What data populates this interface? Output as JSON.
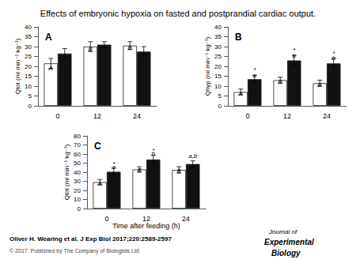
{
  "title": "Effects of embryonic hypoxia on fasted and postprandial cardiac output.",
  "annotations": [
    {
      "text": "Oliver H. Wearing et al. J Exp Biol 2017;220:2589-2597"
    },
    {
      "text": "© 2017. Published by The Company of Biologists Ltd"
    },
    {
      "text": "Journal of"
    },
    {
      "text": "Experimental"
    },
    {
      "text": "Biology"
    }
  ],
  "chart_data": [
    {
      "type": "bar",
      "title": "A",
      "ylabel": "Q̇tot (ml min⁻¹ kg⁻¹)",
      "categories": [
        "0",
        "12",
        "24"
      ],
      "series": [
        {
          "color": "#ffffff",
          "values": [
            21.5,
            30.0,
            30.5
          ],
          "errors": [
            2.5,
            2.5,
            2.0
          ]
        },
        {
          "color": "#111111",
          "values": [
            26.5,
            31.0,
            27.5
          ],
          "errors": [
            2.5,
            1.5,
            2.5
          ]
        }
      ],
      "ylim": [
        0,
        40
      ],
      "yticks": [
        0,
        5,
        10,
        15,
        20,
        25,
        30,
        35,
        40
      ],
      "grid": false,
      "annotations": [
        {
          "text": "A",
          "category": "0",
          "series": 0,
          "y": 17.5
        },
        {
          "text": "B",
          "category": "12",
          "series": 0,
          "y": 27.0
        },
        {
          "text": "B",
          "category": "24",
          "series": 0,
          "y": 28.0
        }
      ]
    },
    {
      "type": "bar",
      "title": "B",
      "ylabel": "Q̇hyp (ml min⁻¹ kg⁻¹)",
      "categories": [
        "0",
        "12",
        "24"
      ],
      "series": [
        {
          "color": "#ffffff",
          "values": [
            7.0,
            13.0,
            11.5
          ],
          "errors": [
            1.5,
            1.5,
            1.5
          ]
        },
        {
          "color": "#111111",
          "values": [
            13.5,
            23.0,
            21.5
          ],
          "errors": [
            2.0,
            2.5,
            2.5
          ]
        }
      ],
      "ylim": [
        0,
        40
      ],
      "yticks": [
        0,
        5,
        10,
        15,
        20,
        25,
        30,
        35,
        40
      ],
      "grid": false,
      "annotations": [
        {
          "text": "A",
          "category": "0",
          "series": 0,
          "y": 4.5
        },
        {
          "text": "B",
          "category": "12",
          "series": 0,
          "y": 10.5
        },
        {
          "text": "B",
          "category": "24",
          "series": 0,
          "y": 9.0
        },
        {
          "text": "*",
          "category": "0",
          "series": 1,
          "y": 16.5
        },
        {
          "text": "a",
          "category": "0",
          "series": 1,
          "y": 14.0
        },
        {
          "text": "*",
          "category": "12",
          "series": 1,
          "y": 26.5
        },
        {
          "text": "b",
          "category": "12",
          "series": 1,
          "y": 24.0
        },
        {
          "text": "*",
          "category": "24",
          "series": 1,
          "y": 25.0
        },
        {
          "text": "b",
          "category": "24",
          "series": 1,
          "y": 22.5
        }
      ]
    },
    {
      "type": "bar",
      "title": "C",
      "ylabel": "Q̇tot (ml min⁻¹ kg⁻¹)",
      "xlabel": "Time after feeding (h)",
      "categories": [
        "0",
        "12",
        "24"
      ],
      "series": [
        {
          "color": "#ffffff",
          "values": [
            29.0,
            43.0,
            42.5
          ],
          "errors": [
            3.0,
            3.0,
            3.5
          ]
        },
        {
          "color": "#111111",
          "values": [
            40.5,
            54.0,
            49.0
          ],
          "errors": [
            4.0,
            4.5,
            3.5
          ]
        }
      ],
      "ylim": [
        0,
        80
      ],
      "yticks": [
        0,
        10,
        20,
        30,
        40,
        50,
        60,
        70,
        80
      ],
      "grid": false,
      "annotations": [
        {
          "text": "A",
          "category": "0",
          "series": 0,
          "y": 24.0
        },
        {
          "text": "B",
          "category": "12",
          "series": 0,
          "y": 38.5
        },
        {
          "text": "B",
          "category": "24",
          "series": 0,
          "y": 37.5
        },
        {
          "text": "*",
          "category": "0",
          "series": 1,
          "y": 46.0
        },
        {
          "text": "a",
          "category": "0",
          "series": 1,
          "y": 42.5
        },
        {
          "text": "*",
          "category": "12",
          "series": 1,
          "y": 60.5
        },
        {
          "text": "b",
          "category": "12",
          "series": 1,
          "y": 57.0
        },
        {
          "text": "a,b",
          "category": "24",
          "series": 1,
          "y": 54.0
        }
      ]
    }
  ]
}
